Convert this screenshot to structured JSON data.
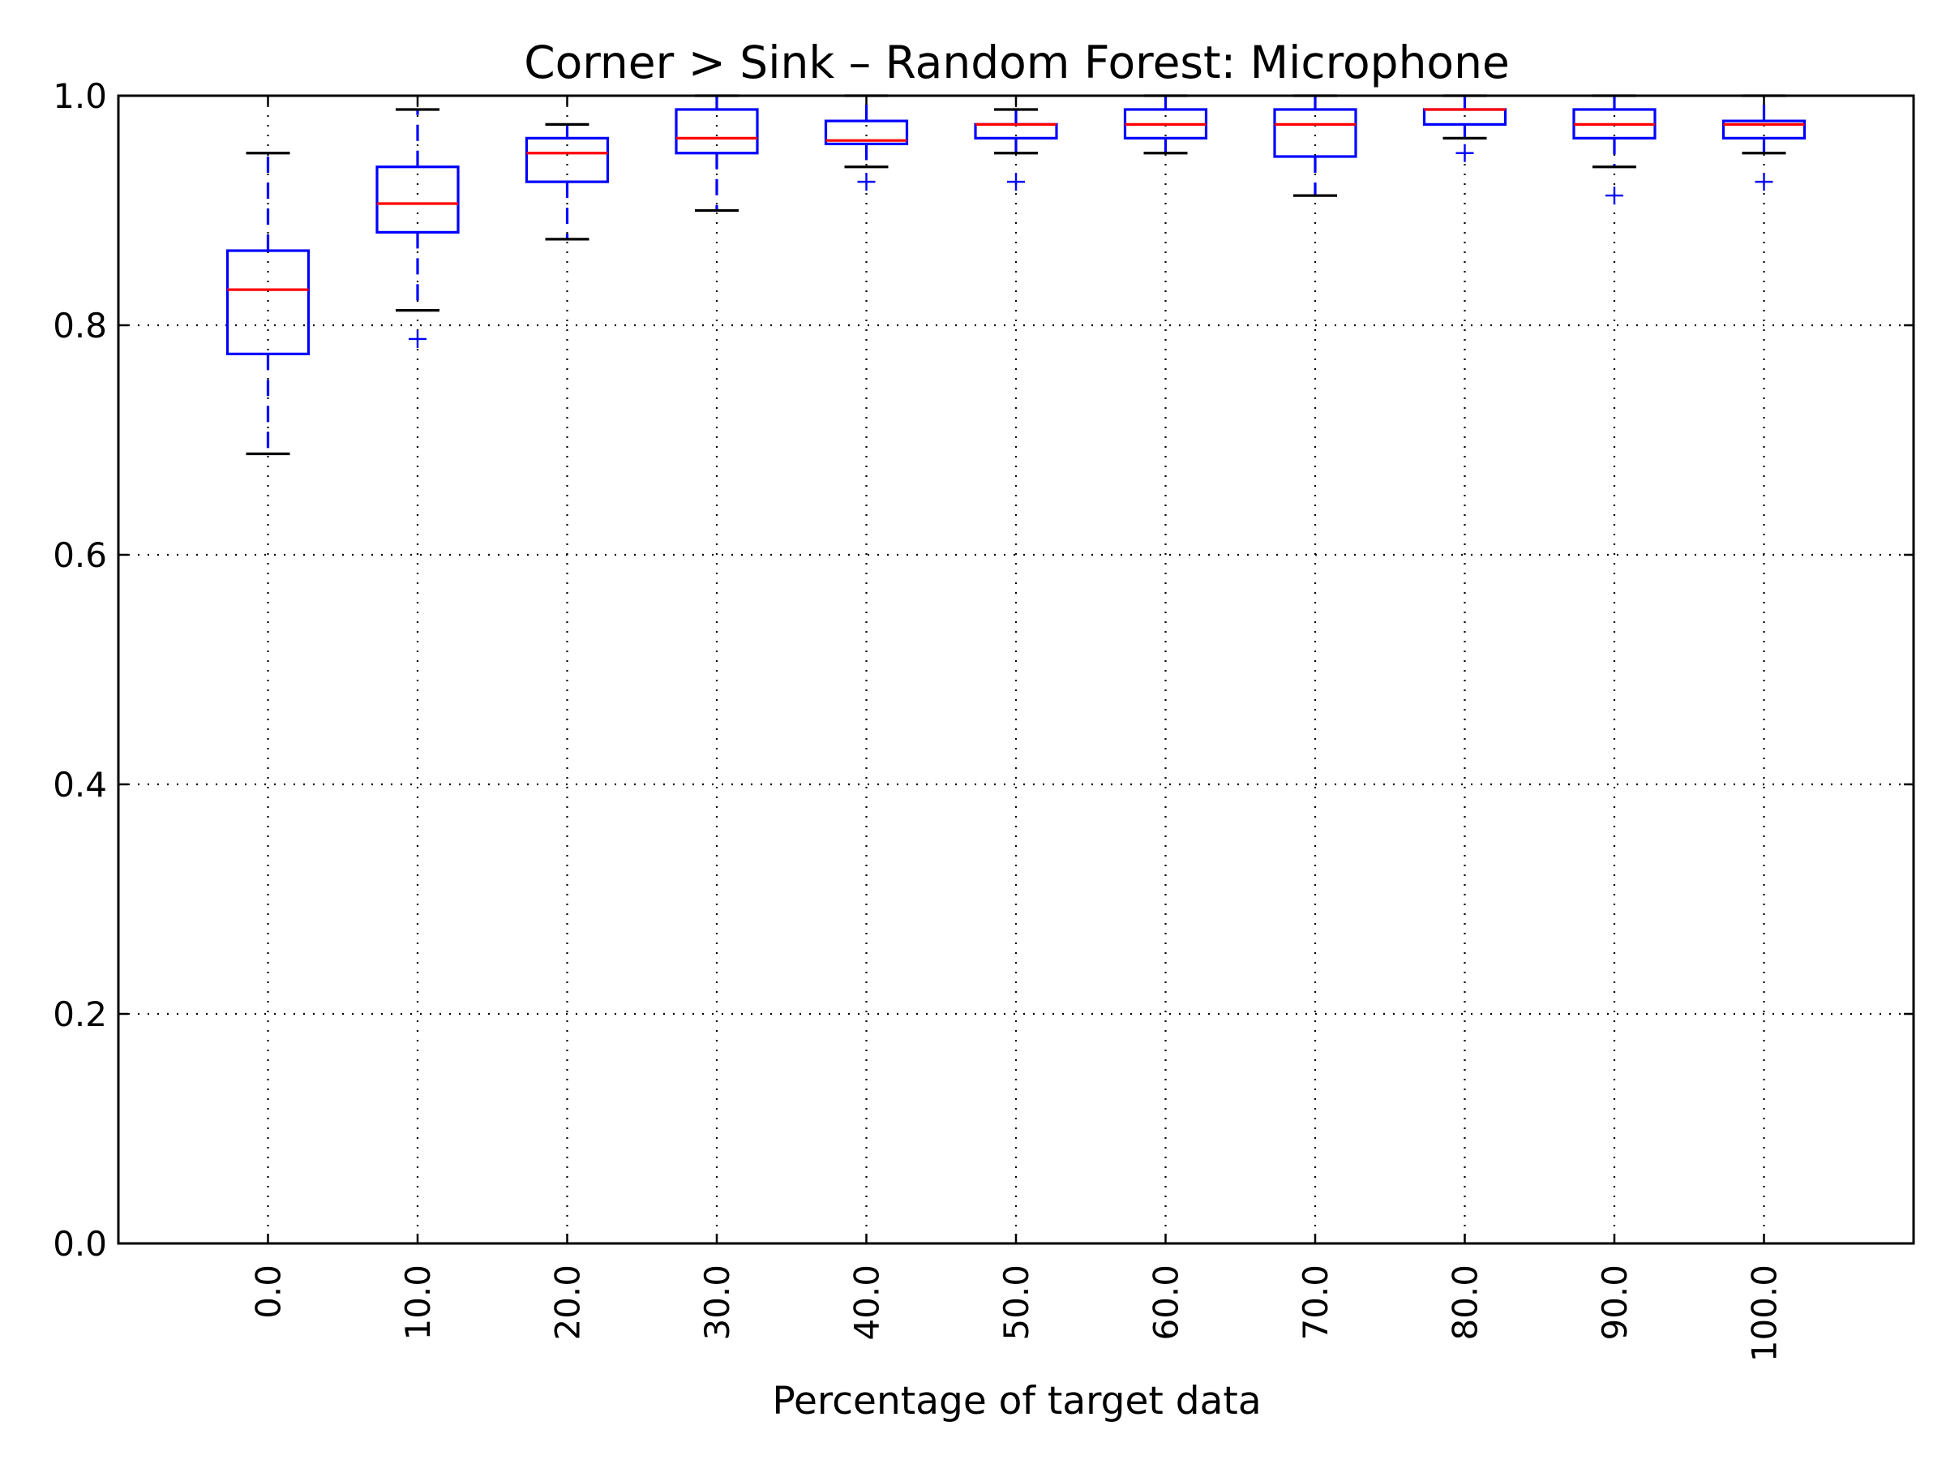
{
  "chart_data": {
    "type": "box",
    "title": "Corner > Sink – Random Forest: Microphone",
    "xlabel": "Percentage of target data",
    "ylabel": "",
    "ylim": [
      0.0,
      1.0
    ],
    "yticks": [
      "0.0",
      "0.2",
      "0.4",
      "0.6",
      "0.8",
      "1.0"
    ],
    "categories": [
      "0.0",
      "10.0",
      "20.0",
      "30.0",
      "40.0",
      "50.0",
      "60.0",
      "70.0",
      "80.0",
      "90.0",
      "100.0"
    ],
    "grid": true,
    "series": [
      {
        "boxes": [
          {
            "whislo": 0.688,
            "q1": 0.775,
            "med": 0.831,
            "q3": 0.865,
            "whishi": 0.95,
            "fliers": []
          },
          {
            "whislo": 0.813,
            "q1": 0.881,
            "med": 0.906,
            "q3": 0.938,
            "whishi": 0.988,
            "fliers": [
              0.788
            ]
          },
          {
            "whislo": 0.875,
            "q1": 0.925,
            "med": 0.95,
            "q3": 0.963,
            "whishi": 0.975,
            "fliers": []
          },
          {
            "whislo": 0.9,
            "q1": 0.95,
            "med": 0.963,
            "q3": 0.988,
            "whishi": 1.0,
            "fliers": []
          },
          {
            "whislo": 0.938,
            "q1": 0.958,
            "med": 0.961,
            "q3": 0.978,
            "whishi": 1.0,
            "fliers": [
              0.925
            ]
          },
          {
            "whislo": 0.95,
            "q1": 0.963,
            "med": 0.975,
            "q3": 0.975,
            "whishi": 0.988,
            "fliers": [
              0.925
            ]
          },
          {
            "whislo": 0.95,
            "q1": 0.963,
            "med": 0.975,
            "q3": 0.988,
            "whishi": 1.0,
            "fliers": []
          },
          {
            "whislo": 0.913,
            "q1": 0.947,
            "med": 0.975,
            "q3": 0.988,
            "whishi": 1.0,
            "fliers": []
          },
          {
            "whislo": 0.963,
            "q1": 0.975,
            "med": 0.988,
            "q3": 0.988,
            "whishi": 1.0,
            "fliers": [
              0.95
            ]
          },
          {
            "whislo": 0.938,
            "q1": 0.963,
            "med": 0.975,
            "q3": 0.988,
            "whishi": 1.0,
            "fliers": [
              0.913
            ]
          },
          {
            "whislo": 0.95,
            "q1": 0.963,
            "med": 0.975,
            "q3": 0.978,
            "whishi": 1.0,
            "fliers": [
              0.925
            ]
          }
        ]
      }
    ],
    "colors": {
      "box": "#0000ff",
      "median": "#ff0000",
      "cap": "#000000",
      "flier": "#0000ff"
    }
  }
}
